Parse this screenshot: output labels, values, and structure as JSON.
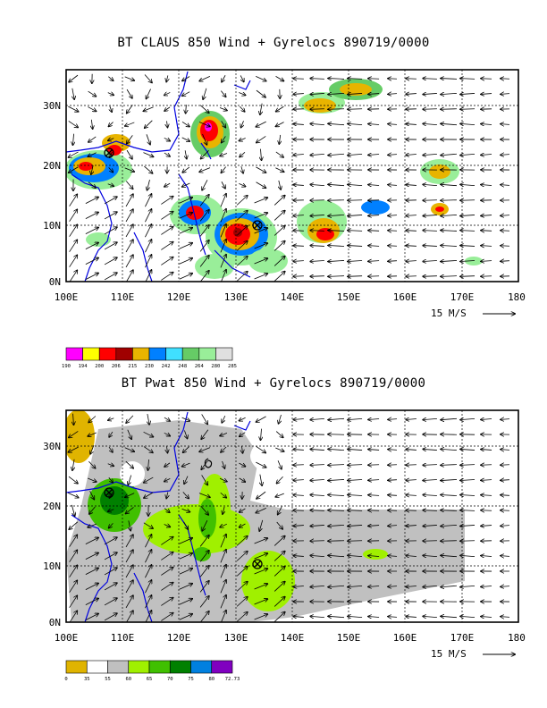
{
  "panels": [
    {
      "id": "claus",
      "title": "BT CLAUS 850 Wind + Gyrelocs 890719/0000",
      "lat_labels": [
        "30N",
        "20N",
        "10N",
        "0N"
      ],
      "lon_labels": [
        "100E",
        "110E",
        "120E",
        "130E",
        "140E",
        "150E",
        "160E",
        "170E",
        "180"
      ],
      "vector_label": "15 M/S",
      "legend": {
        "colors": [
          "#ff00ff",
          "#ffff00",
          "#ff0000",
          "#a00000",
          "#e8b400",
          "#0080ff",
          "#40e0ff",
          "#66cc66",
          "#99ee99",
          "#e0e0e0"
        ],
        "labels": [
          "190",
          "194",
          "200",
          "206",
          "215",
          "230",
          "242",
          "248",
          "264",
          "280",
          "285"
        ]
      }
    },
    {
      "id": "pwat",
      "title": "BT Pwat 850 Wind + Gyrelocs 890719/0000",
      "lat_labels": [
        "30N",
        "20N",
        "10N",
        "0N"
      ],
      "lon_labels": [
        "100E",
        "110E",
        "120E",
        "130E",
        "140E",
        "150E",
        "160E",
        "170E",
        "180"
      ],
      "vector_label": "15 M/S",
      "legend": {
        "colors": [
          "#e0b400",
          "#ffffff",
          "#c0c0c0",
          "#a0f000",
          "#40c000",
          "#008000",
          "#0080e0",
          "#8000c0"
        ],
        "labels": [
          "0",
          "35",
          "55",
          "60",
          "65",
          "70",
          "75",
          "80",
          "72.73"
        ]
      }
    }
  ]
}
